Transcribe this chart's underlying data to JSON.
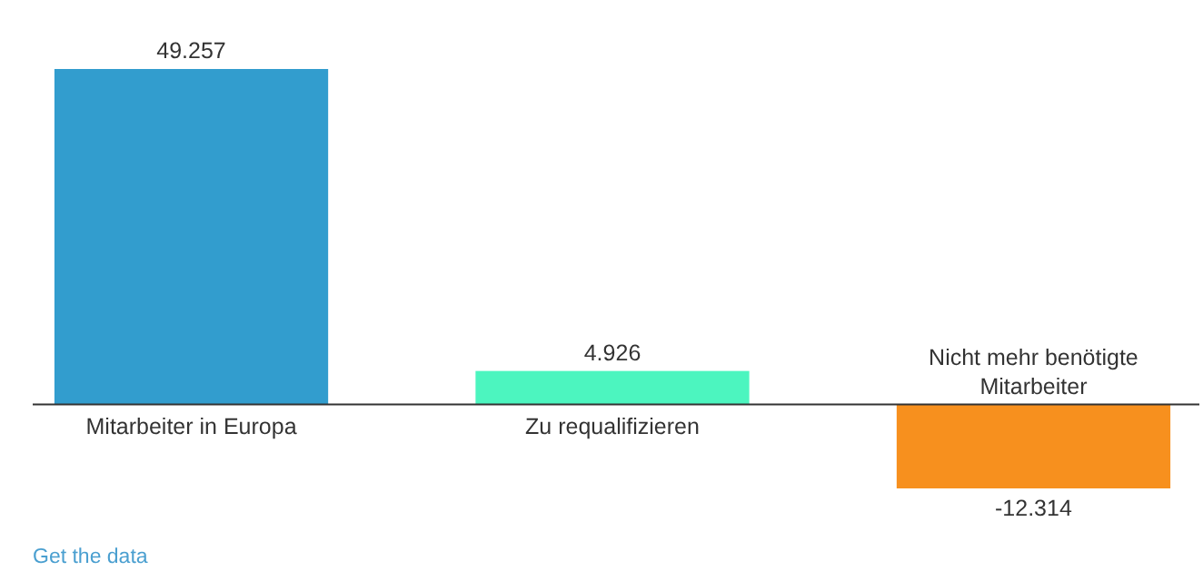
{
  "chart_data": {
    "type": "bar",
    "categories": [
      "Mitarbeiter in Europa",
      "Zu requalifizieren",
      "Nicht mehr benötigte Mitarbeiter"
    ],
    "values": [
      49257,
      4926,
      -12314
    ],
    "colors": [
      "#329dce",
      "#4cf5bf",
      "#f7901e"
    ],
    "value_labels": [
      "49.257",
      "4.926",
      "-12.314"
    ],
    "annotations": [
      "Get the data"
    ]
  }
}
